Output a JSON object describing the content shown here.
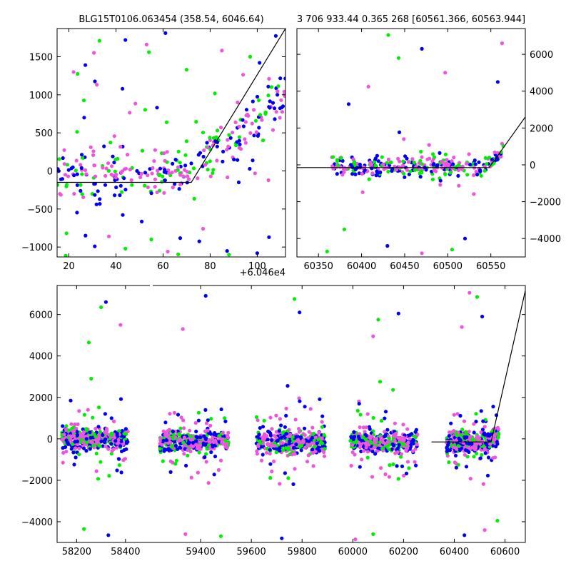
{
  "chart_data": [
    {
      "type": "scatter",
      "title": "BLG15T0106.063454 (358.54, 6046.64)",
      "x_offset_label": "+6.046e4",
      "xlim": [
        15,
        112
      ],
      "ylim": [
        -1130,
        1870
      ],
      "xticks": [
        20,
        40,
        60,
        80,
        100
      ],
      "yticks": [
        -1000,
        -500,
        0,
        500,
        1000,
        1500
      ],
      "y_axis_side": "left",
      "grid": false,
      "colors": {
        "green": "#00ee00",
        "blue": "#0000ee",
        "pink": "#ee55dd",
        "model": "#000000"
      },
      "model_line": {
        "x": [
          15,
          72,
          112
        ],
        "y": [
          -150,
          -150,
          1870
        ]
      },
      "band_groups": [
        {
          "x_range": [
            15,
            112
          ],
          "baseline": -50,
          "scatter": 450
        }
      ],
      "trend_start": 72,
      "outlier_points": [
        [
          33,
          1710
        ],
        [
          44,
          1720
        ],
        [
          53,
          1660
        ],
        [
          54,
          1560
        ],
        [
          61,
          1810
        ],
        [
          85,
          1580
        ],
        [
          97,
          1500
        ],
        [
          101,
          1420
        ],
        [
          105,
          1210
        ],
        [
          70,
          1330
        ],
        [
          27,
          1390
        ],
        [
          22,
          1300
        ],
        [
          44,
          -1020
        ],
        [
          31,
          -990
        ],
        [
          62,
          -1060
        ],
        [
          88,
          -1100
        ],
        [
          100,
          -1080
        ],
        [
          37,
          -860
        ],
        [
          55,
          -900
        ],
        [
          105,
          -870
        ],
        [
          77,
          -760
        ],
        [
          19,
          -820
        ]
      ]
    },
    {
      "type": "scatter",
      "title": "3 706 933.44 0.365 268 [60561.366, 60563.944]",
      "xlim": [
        60325,
        60590
      ],
      "ylim": [
        -5000,
        7400
      ],
      "xticks": [
        60350,
        60400,
        60450,
        60500,
        60550
      ],
      "yticks": [
        -4000,
        -2000,
        0,
        2000,
        4000,
        6000
      ],
      "y_axis_side": "right",
      "grid": false,
      "colors": {
        "green": "#00ee00",
        "blue": "#0000ee",
        "pink": "#ee55dd",
        "model": "#000000"
      },
      "model_line": {
        "x": [
          60325,
          60548,
          60590
        ],
        "y": [
          -150,
          -150,
          2600
        ]
      },
      "band_groups": [
        {
          "x_range": [
            60365,
            60565
          ],
          "baseline": -100,
          "scatter": 600
        }
      ],
      "trend_start": 60540,
      "outlier_points": [
        [
          60431,
          7050
        ],
        [
          60470,
          6300
        ],
        [
          60563,
          6600
        ],
        [
          60443,
          5800
        ],
        [
          60385,
          3300
        ],
        [
          60408,
          4250
        ],
        [
          60360,
          -4700
        ],
        [
          60430,
          -4400
        ],
        [
          60470,
          -4800
        ],
        [
          60505,
          -4600
        ],
        [
          60558,
          4500
        ],
        [
          60497,
          5000
        ],
        [
          60380,
          -3500
        ],
        [
          60520,
          -4000
        ]
      ]
    },
    {
      "type": "scatter",
      "xlim": [
        58120,
        60680
      ],
      "ylim": [
        -5000,
        7400
      ],
      "xticks": [
        58200,
        58400,
        59400,
        59600,
        59800,
        60000,
        60200,
        60400,
        60600
      ],
      "yticks": [
        -4000,
        -2000,
        0,
        2000,
        4000,
        6000
      ],
      "y_axis_side": "left",
      "axis_break_at": 58500,
      "broken_x_segments": [
        [
          58120,
          58500
        ],
        [
          59200,
          60680
        ]
      ],
      "grid": false,
      "colors": {
        "green": "#00ee00",
        "blue": "#0000ee",
        "pink": "#ee55dd",
        "model": "#000000"
      },
      "model_line": {
        "x": [
          60310,
          60545,
          60680
        ],
        "y": [
          -150,
          -150,
          7150
        ]
      },
      "band_groups": [
        {
          "x_range": [
            58140,
            58410
          ],
          "baseline": 0,
          "scatter": 650
        },
        {
          "x_range": [
            59240,
            59510
          ],
          "baseline": -100,
          "scatter": 650
        },
        {
          "x_range": [
            59620,
            59890
          ],
          "baseline": -150,
          "scatter": 700
        },
        {
          "x_range": [
            59990,
            60255
          ],
          "baseline": -150,
          "scatter": 650
        },
        {
          "x_range": [
            60370,
            60575
          ],
          "baseline": -150,
          "scatter": 650
        }
      ],
      "trend_start": 60540,
      "outlier_points": [
        [
          58300,
          6350
        ],
        [
          58320,
          6600
        ],
        [
          58380,
          5500
        ],
        [
          58250,
          4650
        ],
        [
          59420,
          6900
        ],
        [
          59330,
          5300
        ],
        [
          59770,
          6750
        ],
        [
          59790,
          6100
        ],
        [
          60080,
          4950
        ],
        [
          60100,
          5750
        ],
        [
          60180,
          6050
        ],
        [
          60460,
          7050
        ],
        [
          60490,
          6850
        ],
        [
          60510,
          5900
        ],
        [
          60430,
          5400
        ],
        [
          58230,
          -4350
        ],
        [
          58330,
          -4650
        ],
        [
          59340,
          -4600
        ],
        [
          59480,
          -4700
        ],
        [
          59720,
          -4800
        ],
        [
          60010,
          -4850
        ],
        [
          60080,
          -4600
        ],
        [
          60440,
          -4650
        ],
        [
          60520,
          -4400
        ],
        [
          60570,
          -3950
        ]
      ]
    }
  ]
}
